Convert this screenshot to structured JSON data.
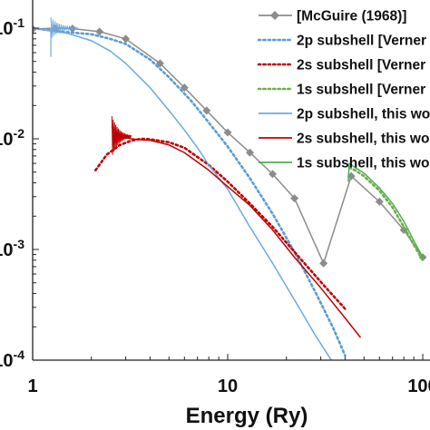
{
  "chart_data": {
    "type": "line",
    "x_scale": "log",
    "y_scale": "log",
    "xlim": [
      1,
      100
    ],
    "ylim": [
      0.0001,
      0.1
    ],
    "x_ticks": [
      1,
      10,
      100
    ],
    "x_tick_labels": [
      "1",
      "10",
      "100"
    ],
    "y_ticks": [
      0.1,
      0.01,
      0.001,
      0.0001
    ],
    "y_tick_labels": [
      "10-1",
      "10-2",
      "10-3",
      "10-4"
    ],
    "xlabel": "Energy (Ry)",
    "ylabel": "",
    "grid": false,
    "legend_position": "top-right",
    "series": [
      {
        "name": "[McGuire (1968)]",
        "color": "#8c8c8c",
        "style": "solid-diamond",
        "x": [
          1.0,
          1.3,
          1.6,
          2.2,
          3.0,
          4.5,
          6.0,
          7.8,
          10.0,
          13.0,
          17.0,
          22.0,
          31.0,
          43.0,
          60.0,
          80.0,
          100.0
        ],
        "y": [
          0.098,
          0.1,
          0.099,
          0.093,
          0.08,
          0.048,
          0.029,
          0.018,
          0.0114,
          0.0075,
          0.0048,
          0.0029,
          0.00075,
          0.0046,
          0.0027,
          0.0015,
          0.00085
        ]
      },
      {
        "name": "2p subshell [Verner",
        "color": "#5b9bd5",
        "style": "dotted",
        "x": [
          1.0,
          1.2,
          1.5,
          2.0,
          2.5,
          3.0,
          4.0,
          5.0,
          6.5,
          8.0,
          10.0,
          13.0,
          17.0,
          22.0,
          28.0,
          35.0,
          40.0
        ],
        "y": [
          0.1,
          0.096,
          0.092,
          0.088,
          0.08,
          0.072,
          0.052,
          0.036,
          0.022,
          0.014,
          0.0085,
          0.0044,
          0.0021,
          0.00095,
          0.00042,
          0.00019,
          0.00011
        ]
      },
      {
        "name": "2s subshell [Verner",
        "color": "#c00000",
        "style": "dotted",
        "x": [
          2.1,
          2.4,
          2.8,
          3.2,
          3.6,
          4.0,
          5.0,
          6.0,
          8.0,
          10.0,
          13.0,
          17.0,
          22.0,
          30.0,
          40.0
        ],
        "y": [
          0.0052,
          0.0072,
          0.0088,
          0.0096,
          0.01,
          0.0099,
          0.0093,
          0.0083,
          0.0058,
          0.0041,
          0.0026,
          0.0016,
          0.00095,
          0.00051,
          0.00029
        ]
      },
      {
        "name": "1s subshell [Verner",
        "color": "#70ad47",
        "style": "dotted",
        "x": [
          42.0,
          45.0,
          50.0,
          60.0,
          70.0,
          80.0,
          90.0,
          100.0
        ],
        "y": [
          0.0055,
          0.0052,
          0.0046,
          0.0034,
          0.0024,
          0.0016,
          0.0011,
          0.0008
        ]
      },
      {
        "name": "2p subshell, this wo",
        "color": "#6fa8dc",
        "style": "solid",
        "x": [
          1.0,
          1.2,
          1.5,
          2.0,
          2.5,
          3.0,
          4.0,
          5.0,
          6.0,
          7.0,
          8.0,
          10.0,
          13.0,
          17.0,
          22.0,
          28.0,
          34.0,
          38.0
        ],
        "y": [
          0.1,
          0.095,
          0.09,
          0.077,
          0.062,
          0.048,
          0.029,
          0.018,
          0.012,
          0.0083,
          0.0058,
          0.0035,
          0.0016,
          0.00075,
          0.00035,
          0.00017,
          0.0001,
          7e-05
        ]
      },
      {
        "name": "2s subshell, this wo",
        "color": "#c00000",
        "style": "solid",
        "x": [
          2.55,
          2.6,
          2.8,
          3.2,
          3.6,
          4.0,
          5.0,
          6.0,
          8.0,
          10.0,
          13.0,
          17.0,
          22.0,
          30.0,
          40.0,
          48.0
        ],
        "y": [
          0.013,
          0.0115,
          0.0105,
          0.01,
          0.0098,
          0.0097,
          0.0088,
          0.0075,
          0.0052,
          0.0037,
          0.0025,
          0.0015,
          0.00085,
          0.00045,
          0.00024,
          0.00016
        ]
      },
      {
        "name": "1s subshell, this wo",
        "color": "#4caf50",
        "style": "solid",
        "x": [
          41.5,
          42.0,
          45.0,
          50.0,
          60.0,
          70.0,
          80.0,
          90.0,
          100.0
        ],
        "y": [
          0.0041,
          0.006,
          0.0055,
          0.0049,
          0.0036,
          0.0026,
          0.0018,
          0.0012,
          0.00085
        ]
      }
    ]
  }
}
